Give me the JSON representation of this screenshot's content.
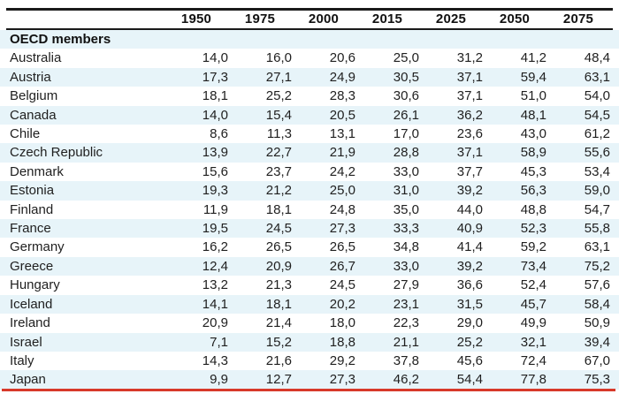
{
  "table": {
    "columns": [
      "1950",
      "1975",
      "2000",
      "2015",
      "2025",
      "2050",
      "2075"
    ],
    "group_label": "OECD members",
    "rows": [
      {
        "country": "Australia",
        "values": [
          "14,0",
          "16,0",
          "20,6",
          "25,0",
          "31,2",
          "41,2",
          "48,4"
        ]
      },
      {
        "country": "Austria",
        "values": [
          "17,3",
          "27,1",
          "24,9",
          "30,5",
          "37,1",
          "59,4",
          "63,1"
        ]
      },
      {
        "country": "Belgium",
        "values": [
          "18,1",
          "25,2",
          "28,3",
          "30,6",
          "37,1",
          "51,0",
          "54,0"
        ]
      },
      {
        "country": "Canada",
        "values": [
          "14,0",
          "15,4",
          "20,5",
          "26,1",
          "36,2",
          "48,1",
          "54,5"
        ]
      },
      {
        "country": "Chile",
        "values": [
          "8,6",
          "11,3",
          "13,1",
          "17,0",
          "23,6",
          "43,0",
          "61,2"
        ]
      },
      {
        "country": "Czech Republic",
        "values": [
          "13,9",
          "22,7",
          "21,9",
          "28,8",
          "37,1",
          "58,9",
          "55,6"
        ]
      },
      {
        "country": "Denmark",
        "values": [
          "15,6",
          "23,7",
          "24,2",
          "33,0",
          "37,7",
          "45,3",
          "53,4"
        ]
      },
      {
        "country": "Estonia",
        "values": [
          "19,3",
          "21,2",
          "25,0",
          "31,0",
          "39,2",
          "56,3",
          "59,0"
        ]
      },
      {
        "country": "Finland",
        "values": [
          "11,9",
          "18,1",
          "24,8",
          "35,0",
          "44,0",
          "48,8",
          "54,7"
        ]
      },
      {
        "country": "France",
        "values": [
          "19,5",
          "24,5",
          "27,3",
          "33,3",
          "40,9",
          "52,3",
          "55,8"
        ]
      },
      {
        "country": "Germany",
        "values": [
          "16,2",
          "26,5",
          "26,5",
          "34,8",
          "41,4",
          "59,2",
          "63,1"
        ]
      },
      {
        "country": "Greece",
        "values": [
          "12,4",
          "20,9",
          "26,7",
          "33,0",
          "39,2",
          "73,4",
          "75,2"
        ]
      },
      {
        "country": "Hungary",
        "values": [
          "13,2",
          "21,3",
          "24,5",
          "27,9",
          "36,6",
          "52,4",
          "57,6"
        ]
      },
      {
        "country": "Iceland",
        "values": [
          "14,1",
          "18,1",
          "20,2",
          "23,1",
          "31,5",
          "45,7",
          "58,4"
        ]
      },
      {
        "country": "Ireland",
        "values": [
          "20,9",
          "21,4",
          "18,0",
          "22,3",
          "29,0",
          "49,9",
          "50,9"
        ]
      },
      {
        "country": "Israel",
        "values": [
          "7,1",
          "15,2",
          "18,8",
          "21,1",
          "25,2",
          "32,1",
          "39,4"
        ]
      },
      {
        "country": "Italy",
        "values": [
          "14,3",
          "21,6",
          "29,2",
          "37,8",
          "45,6",
          "72,4",
          "67,0"
        ]
      },
      {
        "country": "Japan",
        "values": [
          "9,9",
          "12,7",
          "27,3",
          "46,2",
          "54,4",
          "77,8",
          "75,3"
        ]
      }
    ]
  },
  "chart_data": {
    "type": "table",
    "title": "",
    "columns": [
      "1950",
      "1975",
      "2000",
      "2015",
      "2025",
      "2050",
      "2075"
    ],
    "group": "OECD members",
    "decimal_separator": ",",
    "rows": [
      [
        "Australia",
        14.0,
        16.0,
        20.6,
        25.0,
        31.2,
        41.2,
        48.4
      ],
      [
        "Austria",
        17.3,
        27.1,
        24.9,
        30.5,
        37.1,
        59.4,
        63.1
      ],
      [
        "Belgium",
        18.1,
        25.2,
        28.3,
        30.6,
        37.1,
        51.0,
        54.0
      ],
      [
        "Canada",
        14.0,
        15.4,
        20.5,
        26.1,
        36.2,
        48.1,
        54.5
      ],
      [
        "Chile",
        8.6,
        11.3,
        13.1,
        17.0,
        23.6,
        43.0,
        61.2
      ],
      [
        "Czech Republic",
        13.9,
        22.7,
        21.9,
        28.8,
        37.1,
        58.9,
        55.6
      ],
      [
        "Denmark",
        15.6,
        23.7,
        24.2,
        33.0,
        37.7,
        45.3,
        53.4
      ],
      [
        "Estonia",
        19.3,
        21.2,
        25.0,
        31.0,
        39.2,
        56.3,
        59.0
      ],
      [
        "Finland",
        11.9,
        18.1,
        24.8,
        35.0,
        44.0,
        48.8,
        54.7
      ],
      [
        "France",
        19.5,
        24.5,
        27.3,
        33.3,
        40.9,
        52.3,
        55.8
      ],
      [
        "Germany",
        16.2,
        26.5,
        26.5,
        34.8,
        41.4,
        59.2,
        63.1
      ],
      [
        "Greece",
        12.4,
        20.9,
        26.7,
        33.0,
        39.2,
        73.4,
        75.2
      ],
      [
        "Hungary",
        13.2,
        21.3,
        24.5,
        27.9,
        36.6,
        52.4,
        57.6
      ],
      [
        "Iceland",
        14.1,
        18.1,
        20.2,
        23.1,
        31.5,
        45.7,
        58.4
      ],
      [
        "Ireland",
        20.9,
        21.4,
        18.0,
        22.3,
        29.0,
        49.9,
        50.9
      ],
      [
        "Israel",
        7.1,
        15.2,
        18.8,
        21.1,
        25.2,
        32.1,
        39.4
      ],
      [
        "Italy",
        14.3,
        21.6,
        29.2,
        37.8,
        45.6,
        72.4,
        67.0
      ],
      [
        "Japan",
        9.9,
        12.7,
        27.3,
        46.2,
        54.4,
        77.8,
        75.3
      ]
    ]
  },
  "colors": {
    "stripe": "#e7f4f9",
    "rule": "#1a1a1a",
    "text": "#1f1f1f",
    "red_annotation": "#d8392a"
  }
}
